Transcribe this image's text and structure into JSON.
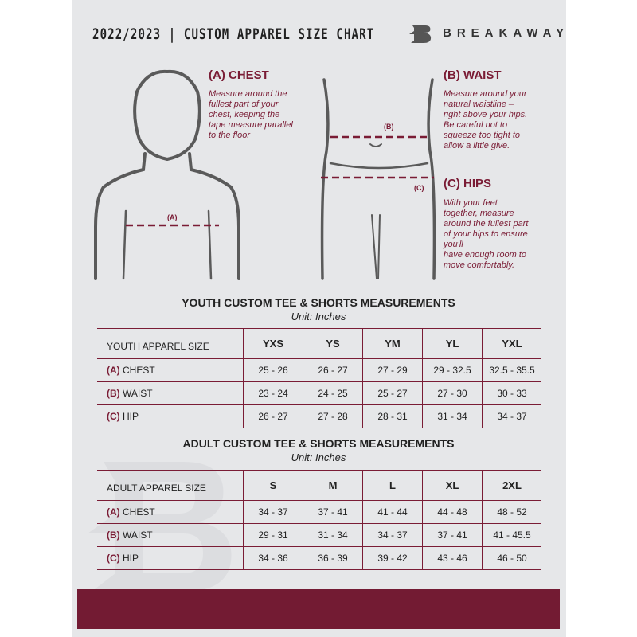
{
  "header": {
    "title": "2022/2023  |  CUSTOM APPAREL SIZE CHART",
    "brand": "BREAKAWAY"
  },
  "guides": {
    "chest": {
      "title": "(A) CHEST",
      "label": "(A)",
      "lines": [
        "Measure around the",
        "fullest part of your",
        "chest, keeping the",
        "tape measure parallel",
        "to the floor"
      ]
    },
    "waist": {
      "title": "(B) WAIST",
      "label": "(B)",
      "lines": [
        "Measure around your",
        "natural waistline –",
        "right above your hips.",
        "Be careful not to",
        "squeeze too tight to",
        "allow a little give."
      ]
    },
    "hips": {
      "title": "(C) HIPS",
      "label": "(C)",
      "lines": [
        "With your feet",
        "together, measure",
        "around the fullest part",
        "of your hips to ensure",
        "you'll",
        "have enough room to",
        "move comfortably."
      ]
    }
  },
  "youth": {
    "title": "YOUTH CUSTOM TEE & SHORTS MEASUREMENTS",
    "unit": "Unit: Inches",
    "header": "YOUTH APPAREL SIZE",
    "sizes": [
      "YXS",
      "YS",
      "YM",
      "YL",
      "YXL"
    ],
    "rows": [
      {
        "letter": "(A)",
        "name": "CHEST",
        "values": [
          "25 - 26",
          "26 - 27",
          "27 - 29",
          "29 - 32.5",
          "32.5 - 35.5"
        ]
      },
      {
        "letter": "(B)",
        "name": "WAIST",
        "values": [
          "23 - 24",
          "24 - 25",
          "25 - 27",
          "27 - 30",
          "30 - 33"
        ]
      },
      {
        "letter": "(C)",
        "name": "HIP",
        "values": [
          "26 - 27",
          "27 - 28",
          "28 - 31",
          "31 - 34",
          "34 - 37"
        ]
      }
    ]
  },
  "adult": {
    "title": "ADULT CUSTOM TEE & SHORTS MEASUREMENTS",
    "unit": "Unit: Inches",
    "header": "ADULT APPAREL SIZE",
    "sizes": [
      "S",
      "M",
      "L",
      "XL",
      "2XL"
    ],
    "rows": [
      {
        "letter": "(A)",
        "name": "CHEST",
        "values": [
          "34 - 37",
          "37 - 41",
          "41 - 44",
          "44 - 48",
          "48 - 52"
        ]
      },
      {
        "letter": "(B)",
        "name": "WAIST",
        "values": [
          "29 - 31",
          "31 - 34",
          "34 - 37",
          "37 - 41",
          "41 - 45.5"
        ]
      },
      {
        "letter": "(C)",
        "name": "HIP",
        "values": [
          "34 - 36",
          "36 - 39",
          "39 - 42",
          "43 - 46",
          "46 - 50"
        ]
      }
    ]
  },
  "colors": {
    "accent": "#7a1c35",
    "background": "#e6e7e9",
    "footer": "#731b33"
  }
}
